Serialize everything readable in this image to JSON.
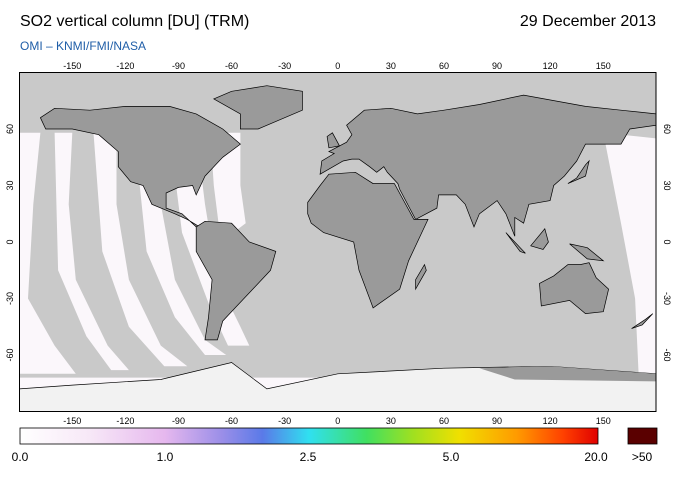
{
  "header": {
    "title": "SO2 vertical column [DU] (TRM)",
    "date": "29 December 2013",
    "source": "OMI  –  KNMI/FMI/NASA"
  },
  "map": {
    "lon_labels_top": [
      -150,
      -120,
      -90,
      -60,
      -30,
      0,
      30,
      60,
      90,
      120,
      150
    ],
    "lon_labels_bottom": [
      -150,
      -120,
      -90,
      -60,
      -30,
      0,
      30,
      60,
      90,
      120,
      150
    ],
    "lat_labels_left": [
      60,
      30,
      0,
      -30,
      -60
    ],
    "lat_labels_right": [
      60,
      30,
      0,
      -30,
      -60
    ]
  },
  "colorbar": {
    "labels": [
      "0.0",
      "1.0",
      "2.5",
      "5.0",
      "20.0"
    ],
    "overflow_label": ">50"
  }
}
